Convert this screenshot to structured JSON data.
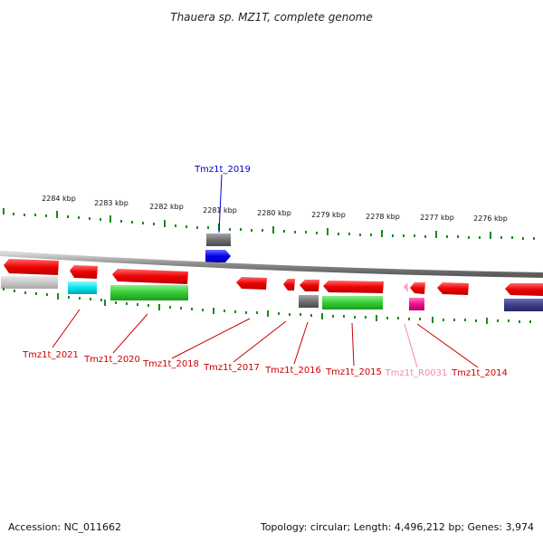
{
  "title": "Thauera sp. MZ1T, complete genome",
  "accession": "Accession: NC_011662",
  "summary": "Topology: circular; Length: 4,496,212 bp; Genes: 3,974",
  "colors": {
    "red": "#ee0000",
    "gray": "#7a7a7a",
    "lightgray": "#cfcfcf",
    "cyan": "#00e5ee",
    "green": "#33cc33",
    "blue": "#0000ee",
    "magenta": "#ee1188",
    "navy": "#3c3c8c",
    "tick": "#1a8a1a",
    "axis": "#8a8a8a"
  },
  "kbp_labels": [
    "2284 kbp",
    "2283 kbp",
    "2282 kbp",
    "2281 kbp",
    "2280 kbp",
    "2279 kbp",
    "2278 kbp",
    "2277 kbp",
    "2276 kbp"
  ],
  "gene_labels": [
    {
      "text": "Tmz1t_2019",
      "color": "#0000cc"
    },
    {
      "text": "Tmz1t_2021",
      "color": "#cc0000"
    },
    {
      "text": "Tmz1t_2020",
      "color": "#cc0000"
    },
    {
      "text": "Tmz1t_2018",
      "color": "#cc0000"
    },
    {
      "text": "Tmz1t_2017",
      "color": "#cc0000"
    },
    {
      "text": "Tmz1t_2016",
      "color": "#cc0000"
    },
    {
      "text": "Tmz1t_2015",
      "color": "#cc0000"
    },
    {
      "text": "Tmz1t_R0031",
      "color": "#ee88bb"
    },
    {
      "text": "Tmz1t_2014",
      "color": "#cc0000"
    }
  ]
}
